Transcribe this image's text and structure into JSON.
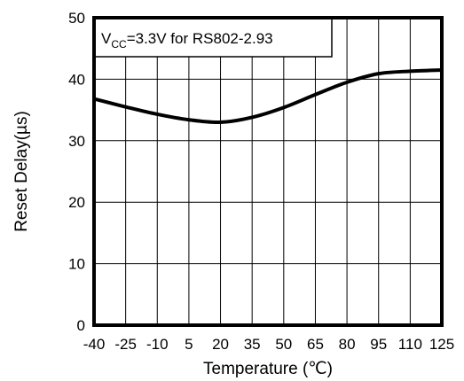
{
  "chart_data": {
    "type": "line",
    "title": "",
    "xlabel": "Temperature (℃)",
    "ylabel": "Reset Delay(µs)",
    "xlim": [
      -40,
      125
    ],
    "ylim": [
      0,
      50
    ],
    "x_ticks": [
      -40,
      -25,
      -10,
      5,
      20,
      35,
      50,
      65,
      80,
      95,
      110,
      125
    ],
    "x_tick_labels": [
      "-40",
      "-25",
      "-10",
      "5",
      "20",
      "35",
      "50",
      "65",
      "80",
      "95",
      "110",
      "125"
    ],
    "y_ticks": [
      0,
      10,
      20,
      30,
      40,
      50
    ],
    "y_tick_labels": [
      "0",
      "10",
      "20",
      "30",
      "40",
      "50"
    ],
    "grid": true,
    "annotation": {
      "prefix": "V",
      "subscript": "CC",
      "suffix": "=3.3V for RS802-2.93",
      "placement": "top-left"
    },
    "series": [
      {
        "x": [
          -40,
          -25,
          -10,
          5,
          20,
          35,
          50,
          65,
          80,
          95,
          110,
          125
        ],
        "y": [
          36.8,
          35.5,
          34.3,
          33.4,
          33.0,
          33.8,
          35.4,
          37.5,
          39.5,
          40.9,
          41.3,
          41.5
        ]
      }
    ],
    "line_color": "#000000"
  }
}
